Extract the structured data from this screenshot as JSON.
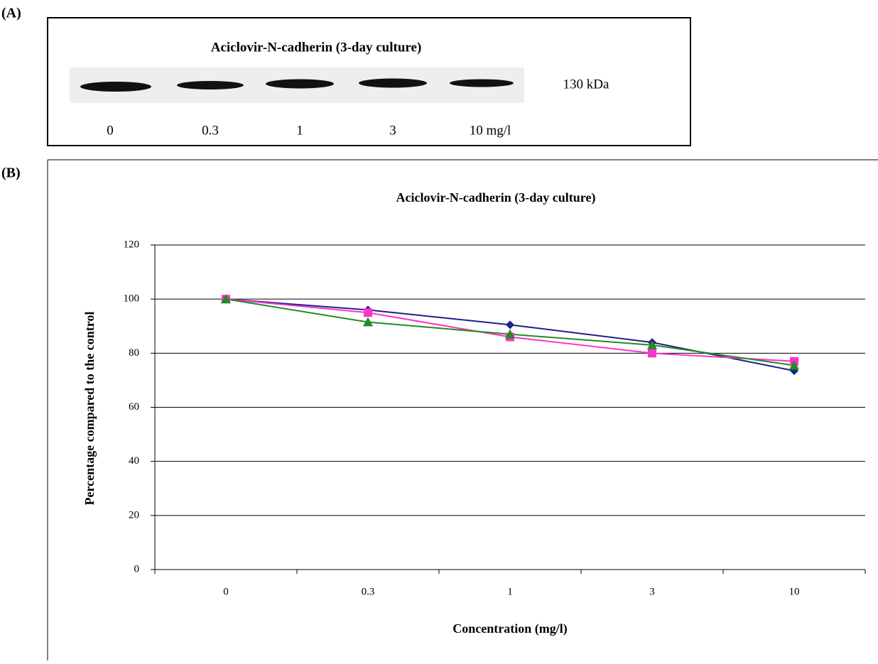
{
  "panel_a": {
    "label": "(A)",
    "title": "Aciclovir-N-cadherin (3-day culture)",
    "marker_weight": "130 kDa",
    "lanes": [
      "0",
      "0.3",
      "1",
      "3",
      "10 mg/l"
    ]
  },
  "panel_b": {
    "label": "(B)"
  },
  "chart_data": {
    "type": "line",
    "title": "Aciclovir-N-cadherin (3-day culture)",
    "x_label": "Concentration (mg/l)",
    "y_label": "Percentage compared to the control",
    "categories": [
      "0",
      "0.3",
      "1",
      "3",
      "10"
    ],
    "series": [
      {
        "color": "#1f1f8f",
        "marker": "diamond",
        "values": [
          100,
          96,
          90.5,
          84,
          73.5
        ]
      },
      {
        "color": "#ff33cc",
        "marker": "square",
        "values": [
          100,
          95,
          86,
          80,
          77
        ]
      },
      {
        "color": "#228b22",
        "marker": "triangle",
        "values": [
          100,
          91.5,
          87,
          83,
          75.5
        ]
      }
    ],
    "ylim": [
      0,
      120
    ],
    "yticks": [
      0,
      20,
      40,
      60,
      80,
      100,
      120
    ],
    "grid": true
  }
}
